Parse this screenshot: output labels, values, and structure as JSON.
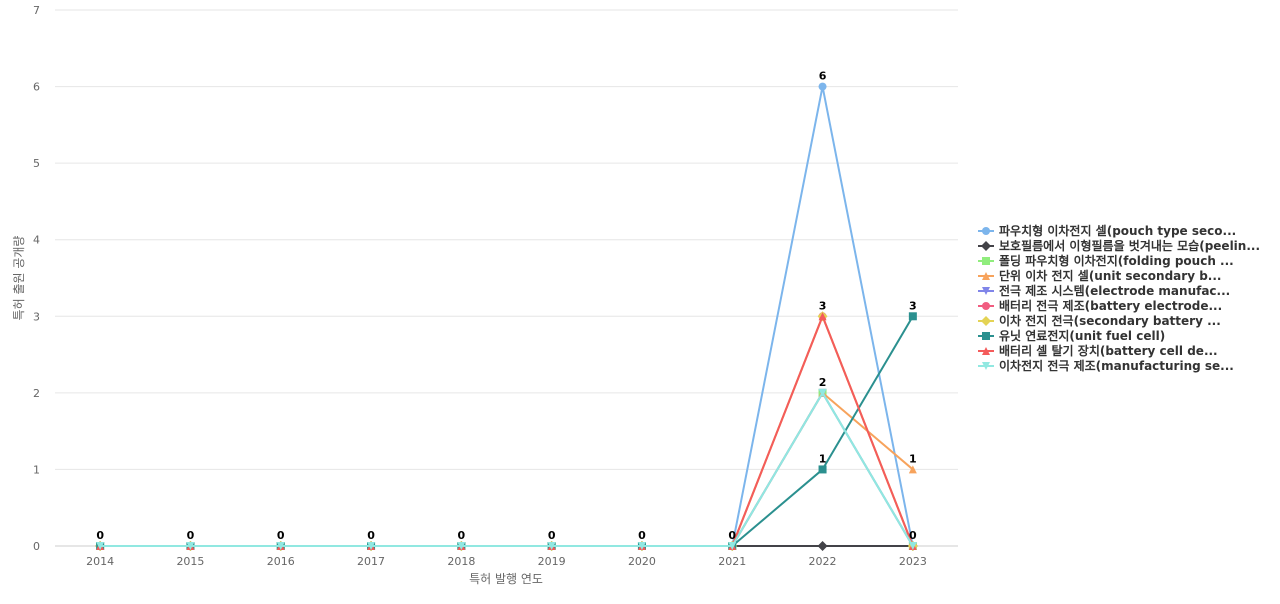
{
  "chart_data": {
    "type": "line",
    "title": "",
    "xlabel": "특허 발행 연도",
    "ylabel": "특허 출원 공개량",
    "categories": [
      "2014",
      "2015",
      "2016",
      "2017",
      "2018",
      "2019",
      "2020",
      "2021",
      "2022",
      "2023"
    ],
    "ylim": [
      0,
      7
    ],
    "yticks": [
      0,
      1,
      2,
      3,
      4,
      5,
      6,
      7
    ],
    "grid": true,
    "legend_position": "right",
    "data_labels_shown": true,
    "series": [
      {
        "name": "파우치형 이차전지 셀(pouch type seco...",
        "color": "#7cb5ec",
        "marker": "circle",
        "values": [
          0,
          0,
          0,
          0,
          0,
          0,
          0,
          0,
          6,
          0
        ]
      },
      {
        "name": "보호필름에서 이형필름을 벗겨내는 모습(peelin...",
        "color": "#434348",
        "marker": "diamond",
        "values": [
          0,
          0,
          0,
          0,
          0,
          0,
          0,
          0,
          0,
          0
        ]
      },
      {
        "name": "폴딩 파우치형 이차전지(folding pouch ...",
        "color": "#90ed7d",
        "marker": "square",
        "values": [
          0,
          0,
          0,
          0,
          0,
          0,
          0,
          0,
          2,
          0
        ]
      },
      {
        "name": "단위 이차 전지 셀(unit secondary b...",
        "color": "#f7a35c",
        "marker": "triangle",
        "values": [
          0,
          0,
          0,
          0,
          0,
          0,
          0,
          0,
          2,
          1
        ]
      },
      {
        "name": "전극 제조 시스템(electrode manufac...",
        "color": "#8085e9",
        "marker": "triangle-down",
        "values": [
          0,
          0,
          0,
          0,
          0,
          0,
          0,
          0,
          2,
          0
        ]
      },
      {
        "name": "배터리 전극 제조(battery electrode...",
        "color": "#f15c80",
        "marker": "circle",
        "values": [
          0,
          0,
          0,
          0,
          0,
          0,
          0,
          0,
          3,
          0
        ]
      },
      {
        "name": "이차 전지 전극(secondary battery ...",
        "color": "#e4d354",
        "marker": "diamond",
        "values": [
          0,
          0,
          0,
          0,
          0,
          0,
          0,
          0,
          3,
          0
        ]
      },
      {
        "name": "유닛 연료전지(unit fuel cell)",
        "color": "#2b908f",
        "marker": "square",
        "values": [
          0,
          0,
          0,
          0,
          0,
          0,
          0,
          0,
          1,
          3
        ]
      },
      {
        "name": "배터리 셀 탈기 장치(battery cell de...",
        "color": "#f45b5b",
        "marker": "triangle",
        "values": [
          0,
          0,
          0,
          0,
          0,
          0,
          0,
          0,
          3,
          0
        ]
      },
      {
        "name": "이차전지 전극 제조(manufacturing se...",
        "color": "#91e8e1",
        "marker": "triangle-down",
        "values": [
          0,
          0,
          0,
          0,
          0,
          0,
          0,
          0,
          2,
          0
        ]
      }
    ],
    "point_labels": [
      {
        "x": "2014",
        "value": "0"
      },
      {
        "x": "2015",
        "value": "0"
      },
      {
        "x": "2016",
        "value": "0"
      },
      {
        "x": "2017",
        "value": "0"
      },
      {
        "x": "2018",
        "value": "0"
      },
      {
        "x": "2019",
        "value": "0"
      },
      {
        "x": "2020",
        "value": "0"
      },
      {
        "x": "2021",
        "value": "0"
      },
      {
        "x": "2022",
        "value": "6"
      },
      {
        "x": "2022",
        "value": "3"
      },
      {
        "x": "2022",
        "value": "2"
      },
      {
        "x": "2022",
        "value": "1"
      },
      {
        "x": "2023",
        "value": "3"
      },
      {
        "x": "2023",
        "value": "1"
      },
      {
        "x": "2023",
        "value": "0"
      }
    ]
  }
}
